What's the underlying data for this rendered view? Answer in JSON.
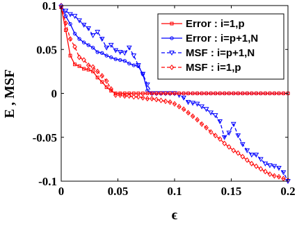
{
  "chart_data": {
    "type": "line",
    "xlabel": "ϵ",
    "ylabel": "E , MSF",
    "xlim": [
      0,
      0.2
    ],
    "ylim": [
      -0.1,
      0.1
    ],
    "xticks": [
      0,
      0.05,
      0.1,
      0.15,
      0.2
    ],
    "xtick_labels": [
      "0",
      "0.05",
      "0.1",
      "0.15",
      "0.2"
    ],
    "yticks": [
      -0.1,
      -0.05,
      0,
      0.05,
      0.1
    ],
    "ytick_labels": [
      "-0.1",
      "-0.05",
      "0",
      "0.05",
      "0.1"
    ],
    "grid": false,
    "legend_position": "top-right",
    "series": [
      {
        "name": "Error : i=1,p",
        "color": "#ff0000",
        "line": "solid",
        "marker": "square",
        "x": [
          0.0,
          0.004,
          0.008,
          0.012,
          0.016,
          0.02,
          0.024,
          0.028,
          0.032,
          0.036,
          0.04,
          0.044,
          0.048,
          0.052,
          0.056,
          0.06,
          0.064,
          0.068,
          0.072,
          0.076,
          0.08,
          0.084,
          0.088,
          0.092,
          0.096,
          0.1,
          0.104,
          0.108,
          0.112,
          0.116,
          0.12,
          0.124,
          0.128,
          0.132,
          0.136,
          0.14,
          0.144,
          0.148,
          0.152,
          0.156,
          0.16,
          0.164,
          0.168,
          0.172,
          0.176,
          0.18,
          0.184,
          0.188,
          0.192,
          0.196,
          0.2
        ],
        "y": [
          0.098,
          0.072,
          0.043,
          0.033,
          0.031,
          0.028,
          0.027,
          0.025,
          0.018,
          0.013,
          0.007,
          0.003,
          0.0,
          0.0,
          0.0,
          0.0,
          0.0,
          0.0,
          0.0,
          0.0,
          0.0,
          0.0,
          0.0,
          0.0,
          0.0,
          0.0,
          0.0,
          0.0,
          0.0,
          0.0,
          0.0,
          0.0,
          0.0,
          0.0,
          0.0,
          0.0,
          0.0,
          0.0,
          0.0,
          0.0,
          0.0,
          0.0,
          0.0,
          0.0,
          0.0,
          0.0,
          0.0,
          0.0,
          0.0,
          0.0,
          0.0
        ]
      },
      {
        "name": "Error : i=p+1,N",
        "color": "#0000ff",
        "line": "solid",
        "marker": "circle",
        "x": [
          0.0,
          0.004,
          0.008,
          0.012,
          0.016,
          0.02,
          0.024,
          0.028,
          0.032,
          0.036,
          0.04,
          0.044,
          0.048,
          0.052,
          0.056,
          0.06,
          0.064,
          0.068,
          0.072,
          0.076,
          0.08,
          0.084,
          0.088,
          0.092,
          0.096,
          0.1,
          0.104,
          0.108,
          0.112,
          0.116,
          0.12,
          0.124,
          0.128,
          0.132,
          0.136,
          0.14,
          0.144,
          0.148,
          0.152,
          0.156,
          0.16,
          0.164,
          0.168,
          0.172,
          0.176,
          0.18,
          0.184,
          0.188,
          0.192,
          0.196,
          0.2
        ],
        "y": [
          0.1,
          0.088,
          0.079,
          0.068,
          0.062,
          0.058,
          0.055,
          0.052,
          0.047,
          0.046,
          0.043,
          0.041,
          0.039,
          0.038,
          0.037,
          0.034,
          0.032,
          0.031,
          0.022,
          0.003,
          0.0,
          0.0,
          0.0,
          0.0,
          0.0,
          0.0,
          0.0,
          0.0,
          0.0,
          0.0,
          0.0,
          0.0,
          0.0,
          0.0,
          0.0,
          0.0,
          0.0,
          0.0,
          0.0,
          0.0,
          0.0,
          0.0,
          0.0,
          0.0,
          0.0,
          0.0,
          0.0,
          0.0,
          0.0,
          0.0,
          0.0
        ]
      },
      {
        "name": "MSF : i=p+1,N",
        "color": "#0000ff",
        "line": "dashed",
        "marker": "triangle-down",
        "x": [
          0.0,
          0.004,
          0.008,
          0.012,
          0.016,
          0.02,
          0.024,
          0.028,
          0.032,
          0.036,
          0.04,
          0.044,
          0.048,
          0.052,
          0.056,
          0.06,
          0.064,
          0.068,
          0.072,
          0.076,
          0.08,
          0.084,
          0.088,
          0.092,
          0.096,
          0.1,
          0.104,
          0.108,
          0.112,
          0.116,
          0.12,
          0.124,
          0.128,
          0.132,
          0.136,
          0.14,
          0.144,
          0.148,
          0.152,
          0.156,
          0.16,
          0.164,
          0.168,
          0.172,
          0.176,
          0.18,
          0.184,
          0.188,
          0.192,
          0.196,
          0.2
        ],
        "y": [
          0.098,
          0.094,
          0.09,
          0.088,
          0.083,
          0.078,
          0.074,
          0.066,
          0.07,
          0.062,
          0.052,
          0.055,
          0.049,
          0.047,
          0.046,
          0.052,
          0.043,
          0.032,
          0.022,
          0.01,
          0.0,
          0.0,
          0.0,
          0.0,
          0.0,
          0.0,
          -0.002,
          -0.005,
          -0.01,
          -0.011,
          -0.012,
          -0.015,
          -0.018,
          -0.022,
          -0.025,
          -0.032,
          -0.05,
          -0.045,
          -0.035,
          -0.048,
          -0.058,
          -0.065,
          -0.07,
          -0.07,
          -0.075,
          -0.08,
          -0.082,
          -0.083,
          -0.085,
          -0.09,
          -0.1
        ]
      },
      {
        "name": "MSF : i=1,p",
        "color": "#ff0000",
        "line": "dashed",
        "marker": "diamond",
        "x": [
          0.0,
          0.004,
          0.008,
          0.012,
          0.016,
          0.02,
          0.024,
          0.028,
          0.032,
          0.036,
          0.04,
          0.044,
          0.048,
          0.052,
          0.056,
          0.06,
          0.064,
          0.068,
          0.072,
          0.076,
          0.08,
          0.084,
          0.088,
          0.092,
          0.096,
          0.1,
          0.104,
          0.108,
          0.112,
          0.116,
          0.12,
          0.124,
          0.128,
          0.132,
          0.136,
          0.14,
          0.144,
          0.148,
          0.152,
          0.156,
          0.16,
          0.164,
          0.168,
          0.172,
          0.176,
          0.18,
          0.184,
          0.188,
          0.192,
          0.196,
          0.2
        ],
        "y": [
          0.1,
          0.08,
          0.062,
          0.053,
          0.041,
          0.038,
          0.032,
          0.03,
          0.025,
          0.02,
          0.014,
          0.005,
          -0.002,
          -0.002,
          -0.003,
          -0.003,
          -0.004,
          -0.004,
          -0.005,
          -0.006,
          -0.006,
          -0.007,
          -0.008,
          -0.009,
          -0.01,
          -0.012,
          -0.015,
          -0.018,
          -0.022,
          -0.026,
          -0.03,
          -0.035,
          -0.039,
          -0.044,
          -0.048,
          -0.052,
          -0.057,
          -0.061,
          -0.065,
          -0.068,
          -0.072,
          -0.076,
          -0.08,
          -0.083,
          -0.086,
          -0.089,
          -0.092,
          -0.094,
          -0.095,
          -0.097,
          -0.099
        ]
      }
    ]
  }
}
